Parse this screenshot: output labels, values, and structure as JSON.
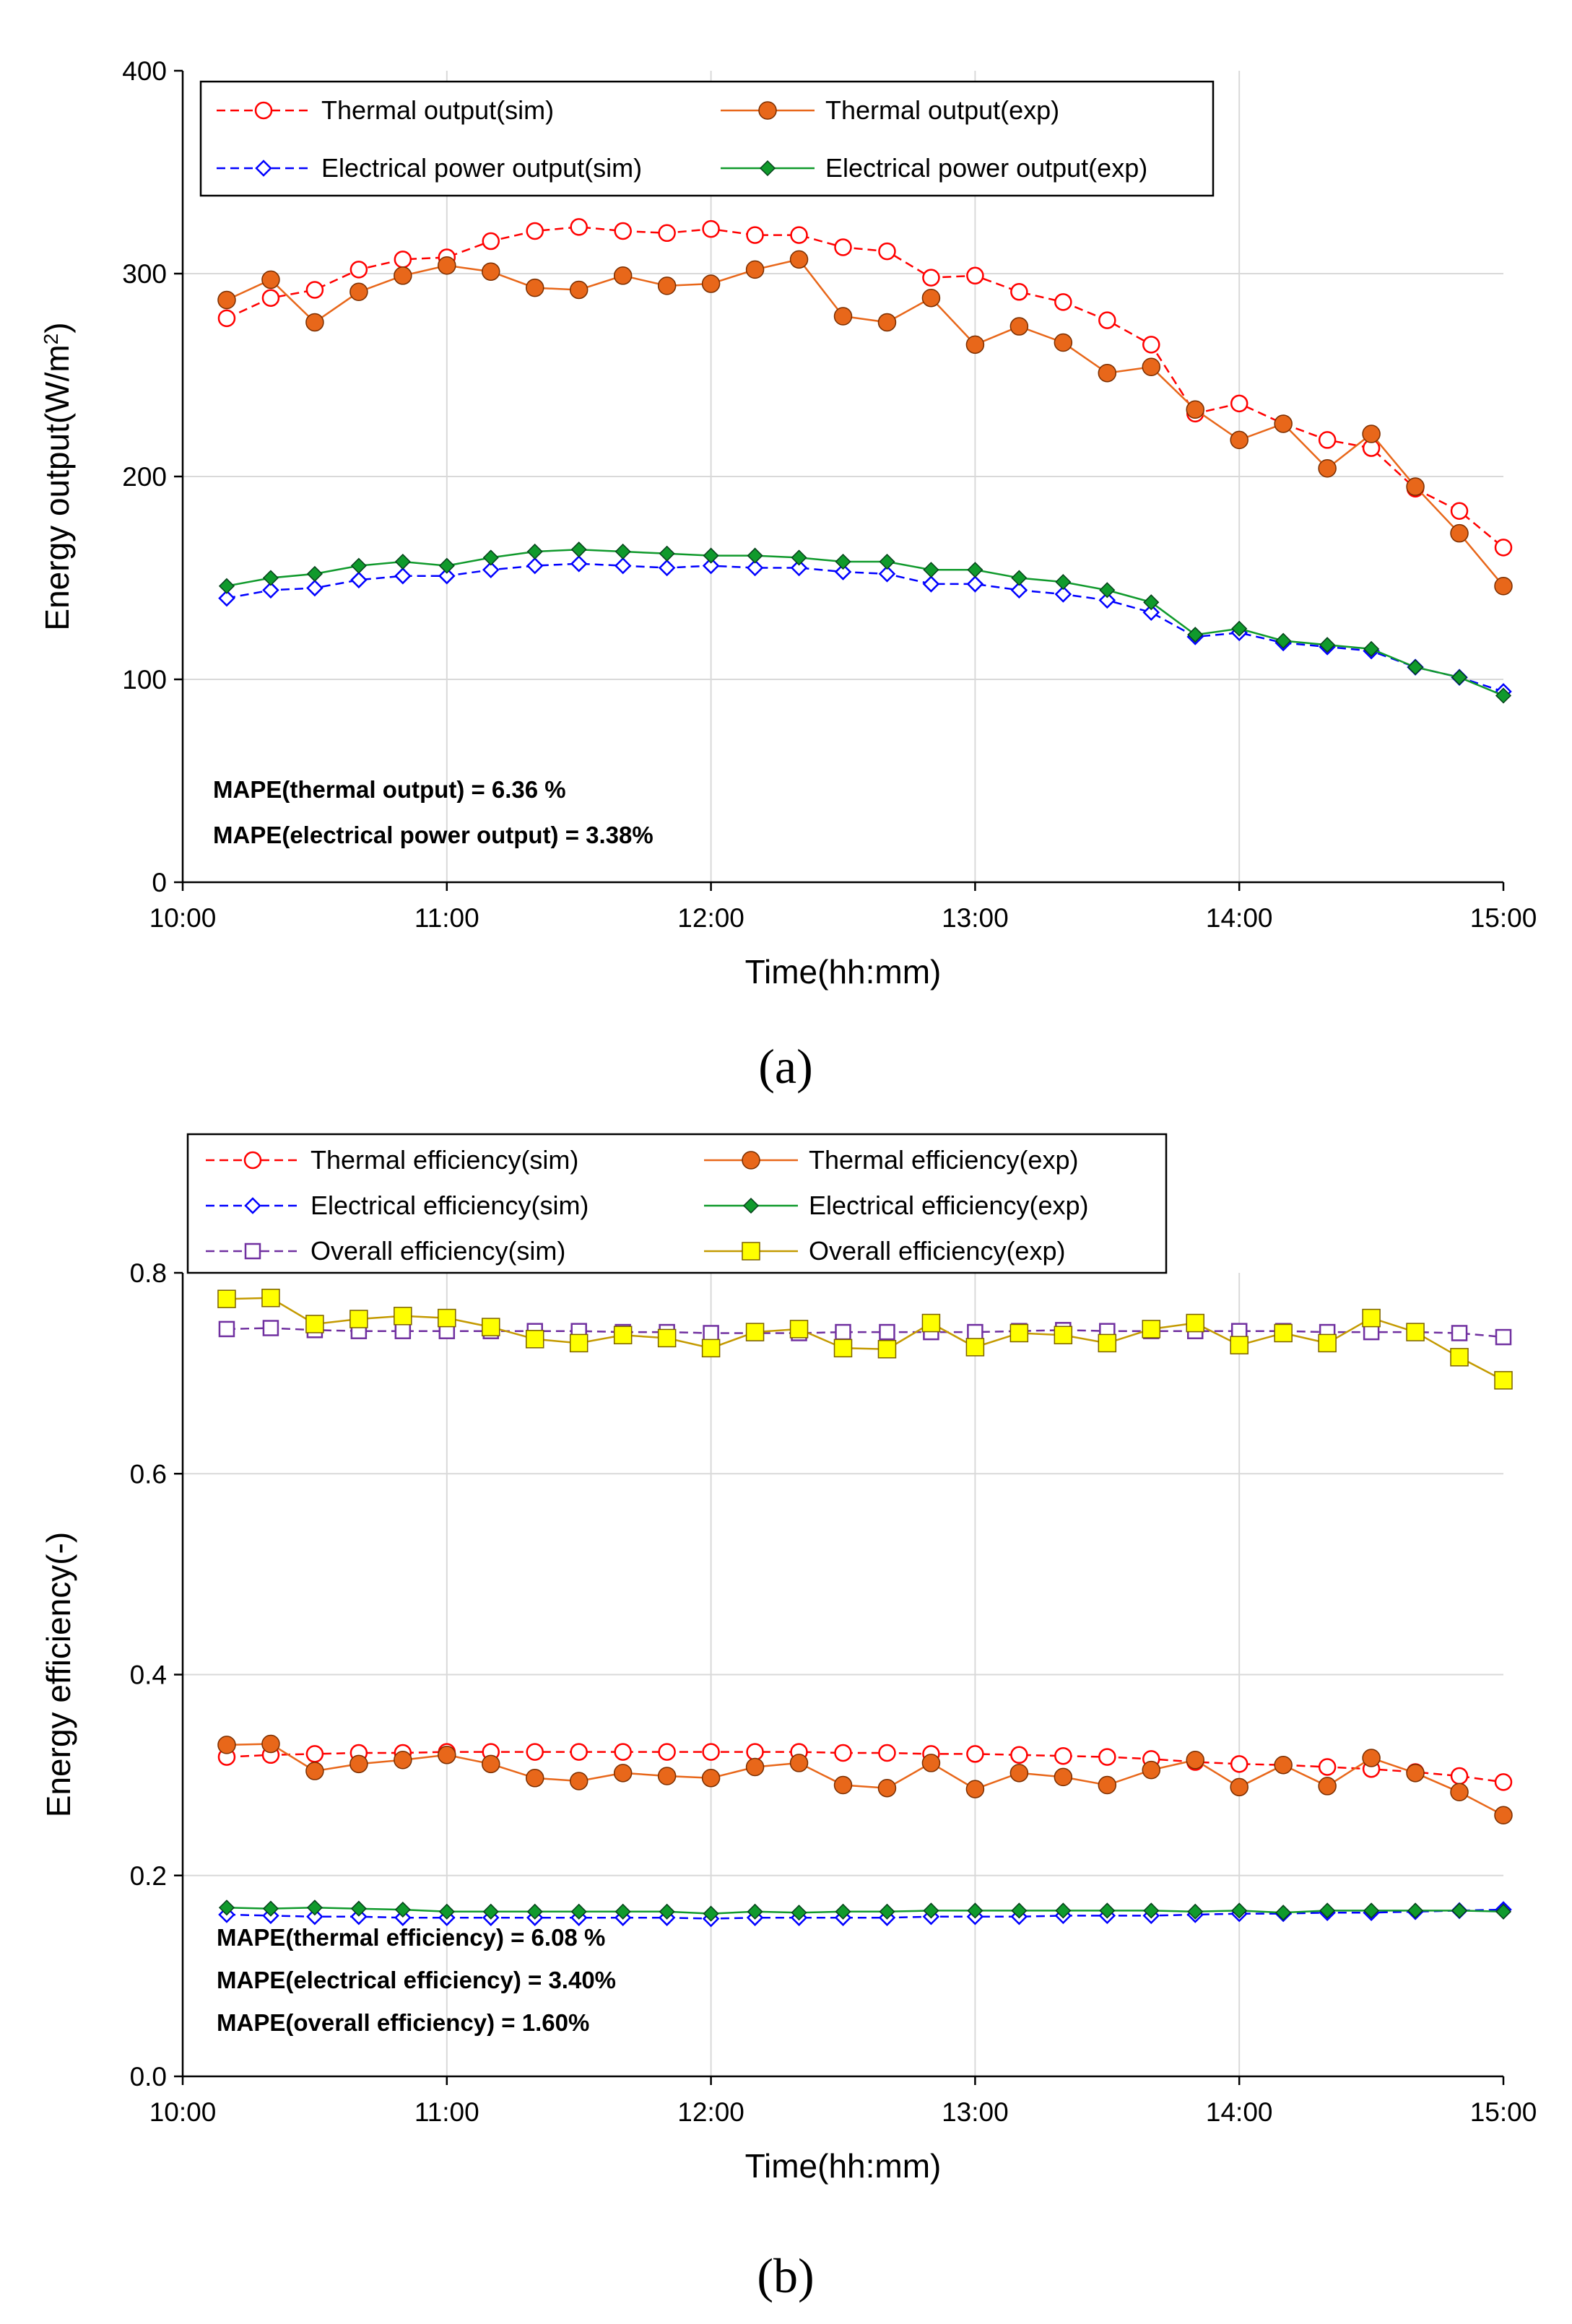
{
  "chart_data": [
    {
      "type": "line",
      "panel_label": "(a)",
      "xlabel": "Time(hh:mm)",
      "ylabel": "Energy output(W/m",
      "ylabel_sup": "2",
      "ylabel_close": ")",
      "ylim": [
        0,
        400
      ],
      "yticks": [
        "0",
        "100",
        "200",
        "300",
        "400"
      ],
      "xticks": [
        "10:00",
        "11:00",
        "12:00",
        "13:00",
        "14:00",
        "15:00"
      ],
      "grid": true,
      "legend_placement": "top",
      "x": [
        "10:10",
        "10:20",
        "10:30",
        "10:40",
        "10:50",
        "11:00",
        "11:10",
        "11:20",
        "11:30",
        "11:40",
        "11:50",
        "12:00",
        "12:10",
        "12:20",
        "12:30",
        "12:40",
        "12:50",
        "13:00",
        "13:10",
        "13:20",
        "13:30",
        "13:40",
        "13:50",
        "14:00",
        "14:10",
        "14:20",
        "14:30",
        "14:40",
        "14:50",
        "15:00"
      ],
      "series": [
        {
          "name": "Thermal output(sim)",
          "color": "#ff0000",
          "marker": "open-circle",
          "dash": true,
          "values": [
            278,
            288,
            292,
            302,
            307,
            308,
            316,
            321,
            323,
            321,
            320,
            322,
            319,
            319,
            313,
            311,
            298,
            299,
            291,
            286,
            277,
            265,
            231,
            236,
            226,
            218,
            214,
            194,
            183,
            165
          ]
        },
        {
          "name": "Thermal output(exp)",
          "color": "#e8671a",
          "marker": "filled-circle",
          "dash": false,
          "values": [
            287,
            297,
            276,
            291,
            299,
            304,
            301,
            293,
            292,
            299,
            294,
            295,
            302,
            307,
            279,
            276,
            288,
            265,
            274,
            266,
            251,
            254,
            233,
            218,
            226,
            204,
            221,
            195,
            172,
            146
          ]
        },
        {
          "name": "Electrical power output(sim)",
          "color": "#0000ff",
          "marker": "open-diamond",
          "dash": true,
          "values": [
            140,
            144,
            145,
            149,
            151,
            151,
            154,
            156,
            157,
            156,
            155,
            156,
            155,
            155,
            153,
            152,
            147,
            147,
            144,
            142,
            139,
            133,
            121,
            123,
            118,
            116,
            114,
            106,
            101,
            94
          ]
        },
        {
          "name": "Electrical power output(exp)",
          "color": "#109a2c",
          "marker": "filled-diamond",
          "dash": false,
          "values": [
            146,
            150,
            152,
            156,
            158,
            156,
            160,
            163,
            164,
            163,
            162,
            161,
            161,
            160,
            158,
            158,
            154,
            154,
            150,
            148,
            144,
            138,
            122,
            125,
            119,
            117,
            115,
            106,
            101,
            92
          ]
        }
      ],
      "annotations": [
        "MAPE(thermal output) = 6.36 %",
        "MAPE(electrical power output) = 3.38%"
      ]
    },
    {
      "type": "line",
      "panel_label": "(b)",
      "xlabel": "Time(hh:mm)",
      "ylabel": "Energy efficiency(-)",
      "ylim": [
        0,
        0.8
      ],
      "yticks": [
        "0.0",
        "0.2",
        "0.4",
        "0.6",
        "0.8"
      ],
      "xticks": [
        "10:00",
        "11:00",
        "12:00",
        "13:00",
        "14:00",
        "15:00"
      ],
      "grid": true,
      "legend_placement": "top",
      "x": [
        "10:10",
        "10:20",
        "10:30",
        "10:40",
        "10:50",
        "11:00",
        "11:10",
        "11:20",
        "11:30",
        "11:40",
        "11:50",
        "12:00",
        "12:10",
        "12:20",
        "12:30",
        "12:40",
        "12:50",
        "13:00",
        "13:10",
        "13:20",
        "13:30",
        "13:40",
        "13:50",
        "14:00",
        "14:10",
        "14:20",
        "14:30",
        "14:40",
        "14:50",
        "15:00"
      ],
      "series": [
        {
          "name": "Thermal efficiency(sim)",
          "color": "#ff0000",
          "marker": "open-circle",
          "dash": true,
          "values": [
            0.318,
            0.32,
            0.321,
            0.322,
            0.322,
            0.323,
            0.323,
            0.323,
            0.323,
            0.323,
            0.323,
            0.323,
            0.323,
            0.323,
            0.322,
            0.322,
            0.321,
            0.321,
            0.32,
            0.319,
            0.318,
            0.316,
            0.313,
            0.311,
            0.31,
            0.308,
            0.306,
            0.303,
            0.299,
            0.293
          ]
        },
        {
          "name": "Thermal efficiency(exp)",
          "color": "#e8671a",
          "marker": "filled-circle",
          "dash": false,
          "values": [
            0.33,
            0.331,
            0.304,
            0.311,
            0.315,
            0.32,
            0.311,
            0.297,
            0.294,
            0.302,
            0.299,
            0.297,
            0.308,
            0.312,
            0.29,
            0.287,
            0.312,
            0.286,
            0.302,
            0.298,
            0.29,
            0.305,
            0.315,
            0.288,
            0.31,
            0.289,
            0.317,
            0.302,
            0.283,
            0.26
          ]
        },
        {
          "name": "Electrical efficiency(sim)",
          "color": "#0000ff",
          "marker": "open-diamond",
          "dash": true,
          "values": [
            0.161,
            0.16,
            0.159,
            0.159,
            0.158,
            0.158,
            0.158,
            0.158,
            0.158,
            0.158,
            0.158,
            0.157,
            0.158,
            0.158,
            0.158,
            0.158,
            0.159,
            0.159,
            0.159,
            0.16,
            0.16,
            0.16,
            0.161,
            0.162,
            0.162,
            0.163,
            0.163,
            0.164,
            0.165,
            0.166
          ]
        },
        {
          "name": "Electrical efficiency(exp)",
          "color": "#109a2c",
          "marker": "filled-diamond",
          "dash": false,
          "values": [
            0.168,
            0.167,
            0.168,
            0.167,
            0.166,
            0.164,
            0.164,
            0.164,
            0.164,
            0.164,
            0.164,
            0.162,
            0.164,
            0.163,
            0.164,
            0.164,
            0.165,
            0.165,
            0.165,
            0.165,
            0.165,
            0.165,
            0.164,
            0.165,
            0.163,
            0.165,
            0.165,
            0.165,
            0.165,
            0.164
          ]
        },
        {
          "name": "Overall efficiency(sim)",
          "color": "#7030a0",
          "marker": "open-square",
          "dash": true,
          "values": [
            0.744,
            0.745,
            0.743,
            0.742,
            0.742,
            0.742,
            0.742,
            0.742,
            0.742,
            0.741,
            0.741,
            0.74,
            0.74,
            0.74,
            0.741,
            0.741,
            0.741,
            0.741,
            0.742,
            0.743,
            0.742,
            0.742,
            0.742,
            0.742,
            0.742,
            0.741,
            0.741,
            0.741,
            0.74,
            0.736
          ]
        },
        {
          "name": "Overall efficiency(exp)",
          "color": "#c49a00",
          "fill": "#ffff00",
          "marker": "filled-square",
          "dash": false,
          "values": [
            0.774,
            0.775,
            0.749,
            0.754,
            0.757,
            0.755,
            0.746,
            0.734,
            0.73,
            0.738,
            0.735,
            0.725,
            0.741,
            0.744,
            0.725,
            0.724,
            0.75,
            0.726,
            0.74,
            0.738,
            0.73,
            0.744,
            0.75,
            0.728,
            0.74,
            0.73,
            0.755,
            0.741,
            0.716,
            0.693
          ]
        }
      ],
      "annotations": [
        "MAPE(thermal efficiency) = 6.08 %",
        "MAPE(electrical efficiency) = 3.40%",
        "MAPE(overall efficiency) = 1.60%"
      ]
    }
  ]
}
